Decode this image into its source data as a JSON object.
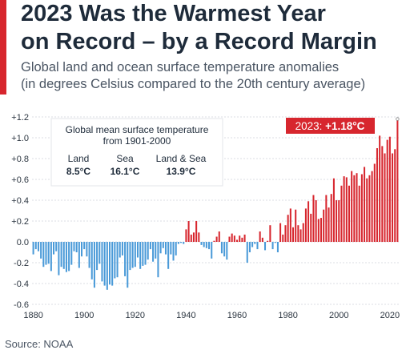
{
  "header": {
    "title_line1": "2023 Was the Warmest Year",
    "title_line2": "on Record – by a Record Margin",
    "subtitle_line1": "Global land and ocean surface temperature anomalies",
    "subtitle_line2": "(in degrees Celsius compared to the 20th century average)"
  },
  "source": "Source: NOAA",
  "colors": {
    "accent": "#d7262e",
    "negative": "#4a9ad8",
    "positive": "#d7262e",
    "title": "#1e2b3a",
    "grid": "#cfd4da"
  },
  "chart_data": {
    "type": "bar",
    "x": [
      1880,
      1881,
      1882,
      1883,
      1884,
      1885,
      1886,
      1887,
      1888,
      1889,
      1890,
      1891,
      1892,
      1893,
      1894,
      1895,
      1896,
      1897,
      1898,
      1899,
      1900,
      1901,
      1902,
      1903,
      1904,
      1905,
      1906,
      1907,
      1908,
      1909,
      1910,
      1911,
      1912,
      1913,
      1914,
      1915,
      1916,
      1917,
      1918,
      1919,
      1920,
      1921,
      1922,
      1923,
      1924,
      1925,
      1926,
      1927,
      1928,
      1929,
      1930,
      1931,
      1932,
      1933,
      1934,
      1935,
      1936,
      1937,
      1938,
      1939,
      1940,
      1941,
      1942,
      1943,
      1944,
      1945,
      1946,
      1947,
      1948,
      1949,
      1950,
      1951,
      1952,
      1953,
      1954,
      1955,
      1956,
      1957,
      1958,
      1959,
      1960,
      1961,
      1962,
      1963,
      1964,
      1965,
      1966,
      1967,
      1968,
      1969,
      1970,
      1971,
      1972,
      1973,
      1974,
      1975,
      1976,
      1977,
      1978,
      1979,
      1980,
      1981,
      1982,
      1983,
      1984,
      1985,
      1986,
      1987,
      1988,
      1989,
      1990,
      1991,
      1992,
      1993,
      1994,
      1995,
      1996,
      1997,
      1998,
      1999,
      2000,
      2001,
      2002,
      2003,
      2004,
      2005,
      2006,
      2007,
      2008,
      2009,
      2010,
      2011,
      2012,
      2013,
      2014,
      2015,
      2016,
      2017,
      2018,
      2019,
      2020,
      2021,
      2022,
      2023
    ],
    "values": [
      -0.12,
      -0.07,
      -0.09,
      -0.16,
      -0.24,
      -0.22,
      -0.21,
      -0.28,
      -0.12,
      -0.09,
      -0.32,
      -0.24,
      -0.26,
      -0.29,
      -0.28,
      -0.22,
      -0.09,
      -0.1,
      -0.25,
      -0.14,
      -0.07,
      -0.14,
      -0.25,
      -0.36,
      -0.44,
      -0.27,
      -0.21,
      -0.38,
      -0.42,
      -0.46,
      -0.41,
      -0.42,
      -0.35,
      -0.34,
      -0.15,
      -0.13,
      -0.33,
      -0.44,
      -0.27,
      -0.25,
      -0.24,
      -0.15,
      -0.26,
      -0.23,
      -0.22,
      -0.17,
      -0.07,
      -0.19,
      -0.16,
      -0.34,
      -0.11,
      -0.06,
      -0.12,
      -0.26,
      -0.12,
      -0.18,
      -0.13,
      -0.02,
      -0.01,
      -0.02,
      0.12,
      0.2,
      0.07,
      0.09,
      0.2,
      0.09,
      -0.03,
      -0.05,
      -0.06,
      -0.07,
      -0.16,
      0.01,
      0.05,
      0.1,
      -0.11,
      -0.14,
      -0.17,
      0.05,
      0.08,
      0.06,
      0.02,
      0.06,
      0.04,
      0.07,
      -0.2,
      -0.1,
      -0.05,
      -0.02,
      -0.07,
      0.1,
      0.04,
      -0.08,
      0.01,
      0.16,
      -0.07,
      -0.01,
      -0.1,
      0.18,
      0.07,
      0.16,
      0.26,
      0.32,
      0.14,
      0.31,
      0.16,
      0.12,
      0.18,
      0.32,
      0.39,
      0.27,
      0.45,
      0.4,
      0.22,
      0.23,
      0.31,
      0.45,
      0.33,
      0.46,
      0.61,
      0.4,
      0.4,
      0.54,
      0.63,
      0.62,
      0.54,
      0.68,
      0.64,
      0.66,
      0.54,
      0.65,
      0.72,
      0.61,
      0.64,
      0.68,
      0.75,
      0.9,
      1.02,
      0.92,
      0.85,
      0.98,
      1.01,
      0.85,
      0.89,
      1.18
    ],
    "xticks": [
      1880,
      1900,
      1920,
      1940,
      1960,
      1980,
      2000,
      2020
    ],
    "ylim": [
      -0.6,
      1.2
    ],
    "yticks": [
      {
        "v": 1.2,
        "label": "+1.2"
      },
      {
        "v": 1.0,
        "label": "+1.0"
      },
      {
        "v": 0.8,
        "label": "+0.8"
      },
      {
        "v": 0.6,
        "label": "+0.6"
      },
      {
        "v": 0.4,
        "label": "+0.4"
      },
      {
        "v": 0.2,
        "label": "+0.2"
      },
      {
        "v": 0.0,
        "label": "0.0"
      },
      {
        "v": -0.2,
        "label": "-0.2"
      },
      {
        "v": -0.4,
        "label": "-0.4"
      },
      {
        "v": -0.6,
        "label": "-0.6"
      }
    ],
    "grid": true,
    "callout": {
      "prefix": "2023: ",
      "value": "+1.18°C"
    },
    "infobox": {
      "title_line1": "Global mean surface temperature",
      "title_line2": "from 1901-2000",
      "items": [
        {
          "label": "Land",
          "value": "8.5°C"
        },
        {
          "label": "Sea",
          "value": "16.1°C"
        },
        {
          "label": "Land & Sea",
          "value": "13.9°C"
        }
      ]
    }
  }
}
